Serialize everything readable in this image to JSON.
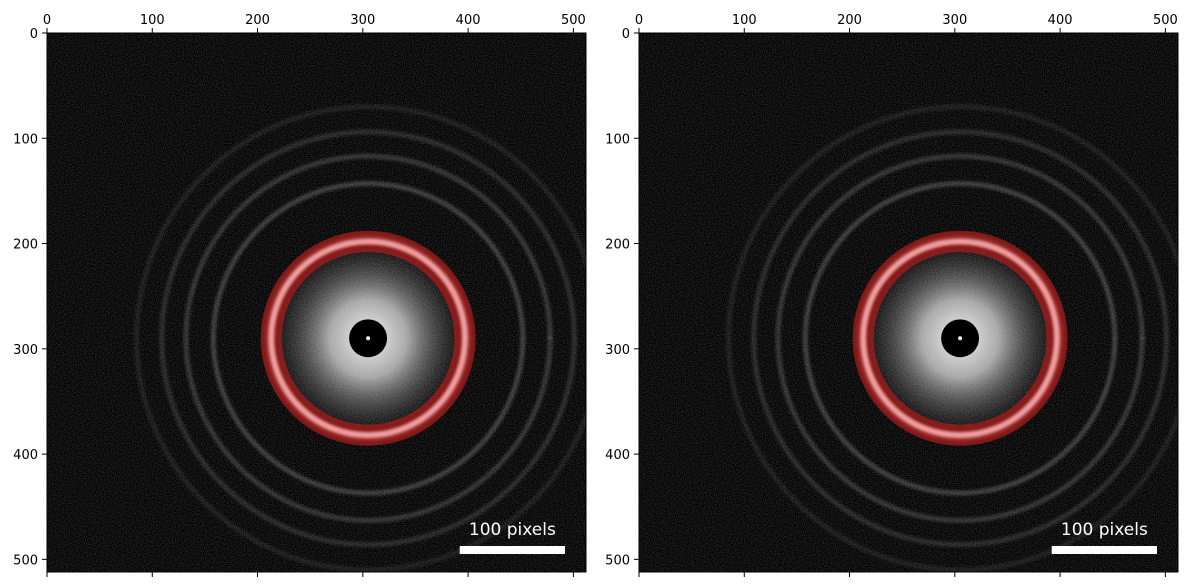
{
  "chart_data": [
    {
      "type": "heatmap",
      "description_of_content": "",
      "x_ticks": [
        0,
        100,
        200,
        300,
        400,
        500
      ],
      "y_ticks": [
        0,
        100,
        200,
        300,
        400,
        500
      ],
      "xlim": [
        0,
        512
      ],
      "ylim": [
        512,
        0
      ],
      "x_axis_position": "top",
      "center": [
        305,
        290
      ],
      "center_hole_radius": 18,
      "diffraction_rings": [
        95,
        147,
        173,
        196,
        220
      ],
      "masked_annulus": {
        "inner_radius": 82,
        "outer_radius": 102,
        "peak_radius": 92,
        "color": "#b01c1c"
      },
      "scalebar": {
        "label": "100 pixels",
        "length": 100,
        "position": "bottom-right"
      }
    },
    {
      "type": "heatmap",
      "x_ticks": [
        0,
        100,
        200,
        300,
        400,
        500
      ],
      "y_ticks": [
        0,
        100,
        200,
        300,
        400,
        500
      ],
      "xlim": [
        0,
        512
      ],
      "ylim": [
        512,
        0
      ],
      "x_axis_position": "top",
      "center": [
        305,
        290
      ],
      "center_hole_radius": 18,
      "diffraction_rings": [
        95,
        147,
        173,
        196,
        220
      ],
      "masked_annulus": {
        "inner_radius": 82,
        "outer_radius": 102,
        "peak_radius": 92,
        "color": "#b01c1c"
      },
      "scalebar": {
        "label": "100 pixels",
        "length": 100,
        "position": "bottom-right"
      }
    }
  ]
}
